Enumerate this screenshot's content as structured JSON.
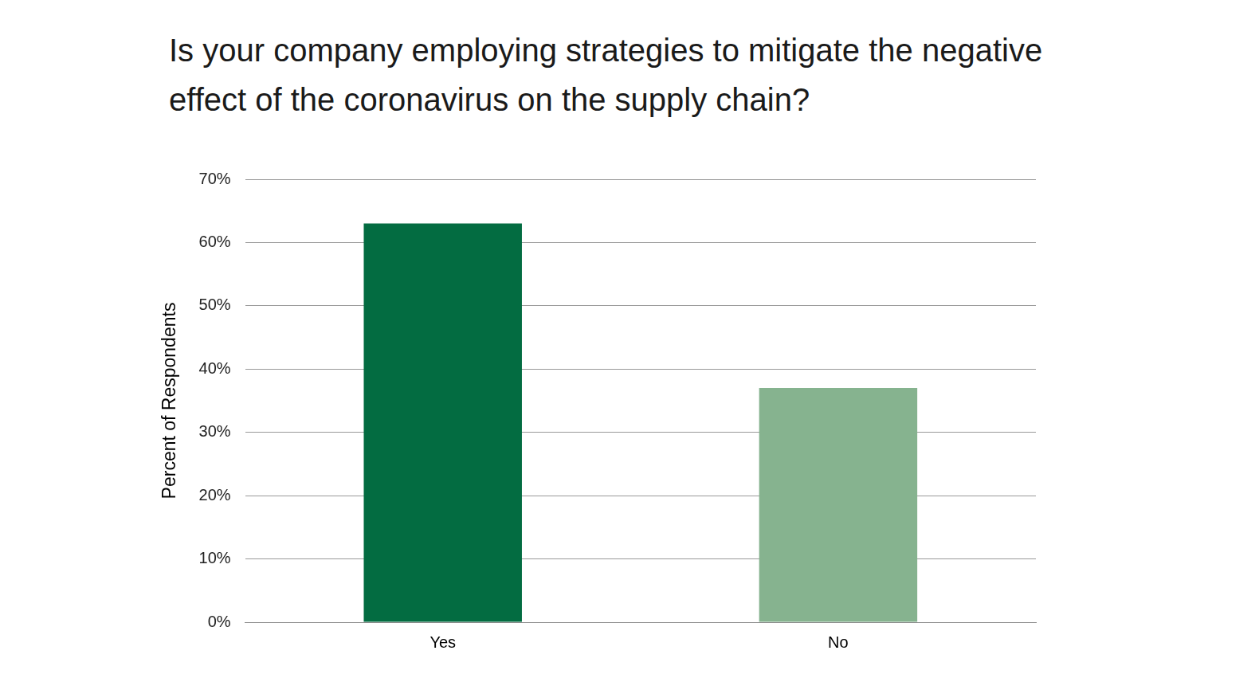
{
  "chart_data": {
    "type": "bar",
    "title": "Is your company employing strategies to mitigate the negative effect of the coronavirus on the supply chain?",
    "y_label": "Percent of Respondents",
    "categories": [
      "Yes",
      "No"
    ],
    "values": [
      63,
      37
    ],
    "colors": [
      "#036c41",
      "#86b38f"
    ],
    "ylim": [
      0,
      70
    ],
    "yticks": [
      {
        "value": 0,
        "label": "0%"
      },
      {
        "value": 10,
        "label": "10%"
      },
      {
        "value": 20,
        "label": "20%"
      },
      {
        "value": 30,
        "label": "30%"
      },
      {
        "value": 40,
        "label": "40%"
      },
      {
        "value": 50,
        "label": "50%"
      },
      {
        "value": 60,
        "label": "60%"
      },
      {
        "value": 70,
        "label": "70%"
      }
    ],
    "grid": true
  }
}
